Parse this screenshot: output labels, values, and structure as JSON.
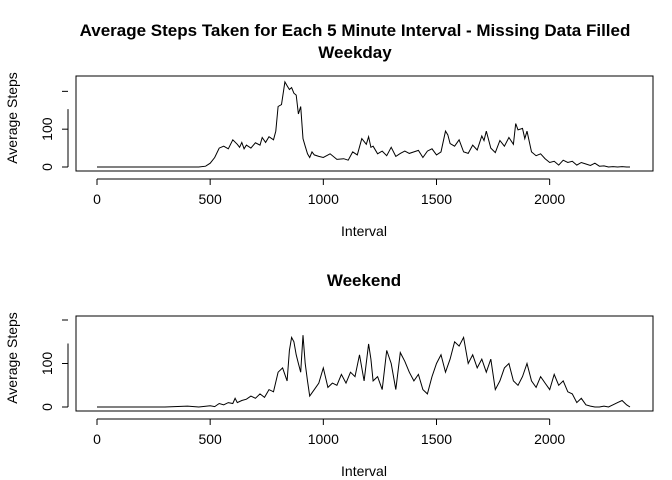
{
  "figure": {
    "title_line1": "Average Steps Taken for Each 5 Minute Interval - Missing Data Filled",
    "title_line2": "Weekday",
    "panel2_title": "Weekend"
  },
  "chart_data": [
    {
      "type": "line",
      "title": "Weekday",
      "xlabel": "Interval",
      "ylabel": "Average Steps",
      "xlim": [
        0,
        2355
      ],
      "ylim": [
        0,
        230
      ],
      "xticks": [
        0,
        500,
        1000,
        1500,
        2000
      ],
      "yticks": [
        0,
        100
      ],
      "grid": false,
      "series": [
        {
          "x": [
            0,
            100,
            200,
            300,
            400,
            450,
            480,
            500,
            520,
            540,
            560,
            580,
            600,
            620,
            630,
            640,
            650,
            660,
            680,
            700,
            720,
            730,
            745,
            760,
            780,
            790,
            800,
            815,
            830,
            840,
            850,
            860,
            870,
            880,
            890,
            900,
            910,
            920,
            930,
            940,
            950,
            960,
            980,
            1000,
            1030,
            1060,
            1090,
            1110,
            1130,
            1150,
            1170,
            1190,
            1200,
            1210,
            1220,
            1240,
            1260,
            1280,
            1300,
            1320,
            1340,
            1360,
            1380,
            1400,
            1420,
            1440,
            1460,
            1480,
            1500,
            1520,
            1540,
            1550,
            1560,
            1580,
            1600,
            1620,
            1640,
            1660,
            1680,
            1700,
            1710,
            1720,
            1740,
            1760,
            1780,
            1800,
            1820,
            1840,
            1850,
            1860,
            1880,
            1890,
            1900,
            1920,
            1940,
            1960,
            1980,
            2000,
            2020,
            2040,
            2060,
            2080,
            2100,
            2120,
            2140,
            2160,
            2180,
            2200,
            2220,
            2240,
            2260,
            2280,
            2300,
            2320,
            2340,
            2355
          ],
          "y": [
            0,
            0,
            0,
            0,
            0,
            0,
            2,
            10,
            25,
            50,
            55,
            48,
            72,
            60,
            52,
            65,
            48,
            58,
            50,
            64,
            58,
            78,
            65,
            80,
            72,
            95,
            160,
            165,
            225,
            215,
            205,
            210,
            195,
            190,
            140,
            160,
            75,
            55,
            35,
            25,
            40,
            32,
            28,
            25,
            35,
            20,
            22,
            18,
            40,
            32,
            75,
            60,
            80,
            52,
            55,
            35,
            42,
            30,
            52,
            28,
            36,
            42,
            36,
            40,
            44,
            25,
            42,
            48,
            32,
            40,
            95,
            85,
            62,
            55,
            72,
            40,
            36,
            58,
            45,
            82,
            70,
            95,
            50,
            38,
            70,
            55,
            78,
            60,
            115,
            98,
            102,
            75,
            95,
            40,
            30,
            35,
            22,
            12,
            15,
            5,
            18,
            12,
            15,
            5,
            12,
            8,
            4,
            10,
            2,
            3,
            0,
            1,
            0,
            1,
            0,
            0
          ]
        }
      ]
    },
    {
      "type": "line",
      "title": "Weekend",
      "xlabel": "Interval",
      "ylabel": "Average Steps",
      "xlim": [
        0,
        2355
      ],
      "ylim": [
        0,
        200
      ],
      "xticks": [
        0,
        500,
        1000,
        1500,
        2000
      ],
      "yticks": [
        0,
        100
      ],
      "grid": false,
      "series": [
        {
          "x": [
            0,
            100,
            200,
            300,
            400,
            450,
            500,
            520,
            540,
            560,
            580,
            600,
            610,
            620,
            640,
            660,
            680,
            700,
            720,
            740,
            760,
            780,
            800,
            820,
            840,
            850,
            860,
            870,
            880,
            890,
            900,
            910,
            920,
            930,
            940,
            960,
            980,
            1000,
            1020,
            1040,
            1060,
            1080,
            1100,
            1120,
            1140,
            1160,
            1180,
            1200,
            1210,
            1220,
            1240,
            1260,
            1280,
            1300,
            1320,
            1340,
            1360,
            1380,
            1400,
            1420,
            1440,
            1460,
            1480,
            1500,
            1520,
            1540,
            1560,
            1580,
            1600,
            1620,
            1640,
            1660,
            1680,
            1700,
            1720,
            1740,
            1760,
            1780,
            1800,
            1820,
            1840,
            1860,
            1880,
            1900,
            1920,
            1940,
            1960,
            1980,
            2000,
            2020,
            2040,
            2060,
            2080,
            2100,
            2120,
            2140,
            2160,
            2180,
            2200,
            2220,
            2240,
            2260,
            2280,
            2300,
            2320,
            2340,
            2355
          ],
          "y": [
            0,
            0,
            0,
            0,
            2,
            0,
            3,
            1,
            8,
            5,
            10,
            8,
            20,
            10,
            15,
            18,
            25,
            20,
            30,
            22,
            40,
            35,
            80,
            90,
            60,
            130,
            160,
            150,
            120,
            100,
            80,
            165,
            100,
            60,
            25,
            40,
            55,
            90,
            45,
            55,
            50,
            75,
            55,
            80,
            70,
            120,
            60,
            145,
            110,
            60,
            70,
            40,
            130,
            100,
            40,
            125,
            105,
            80,
            60,
            75,
            40,
            30,
            70,
            100,
            120,
            80,
            110,
            150,
            140,
            160,
            100,
            120,
            90,
            110,
            80,
            110,
            40,
            60,
            90,
            100,
            60,
            50,
            70,
            100,
            60,
            45,
            70,
            55,
            40,
            75,
            50,
            60,
            35,
            30,
            10,
            20,
            5,
            2,
            0,
            0,
            2,
            0,
            5,
            10,
            15,
            5,
            0
          ]
        }
      ]
    }
  ]
}
